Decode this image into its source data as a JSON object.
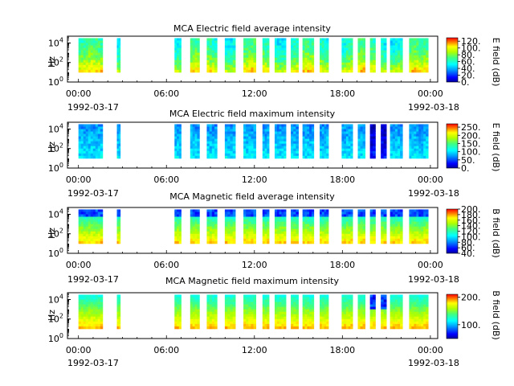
{
  "chart_data": [
    {
      "type": "heatmap",
      "title": "MCA  Electric field average intensity",
      "ylabel": "Hz",
      "y_ticks": [
        {
          "exp": "0"
        },
        {
          "exp": "2"
        },
        {
          "exp": "4"
        }
      ],
      "x_ticks": [
        "00:00",
        "06:00",
        "12:00",
        "18:00",
        "00:00"
      ],
      "x_date_start": "1992-03-17",
      "x_date_end": "1992-03-18",
      "colorbar": {
        "label": "E field (dB)",
        "range": [
          0,
          130
        ],
        "ticks": [
          "0.",
          "20.",
          "40.",
          "60.",
          "80.",
          "100.",
          "120."
        ]
      },
      "profile": "eavg"
    },
    {
      "type": "heatmap",
      "title": "MCA  Electric field maximum intensity",
      "ylabel": "Hz",
      "y_ticks": [
        {
          "exp": "0"
        },
        {
          "exp": "2"
        },
        {
          "exp": "4"
        }
      ],
      "x_ticks": [
        "00:00",
        "06:00",
        "12:00",
        "18:00",
        "00:00"
      ],
      "x_date_start": "1992-03-17",
      "x_date_end": "1992-03-18",
      "colorbar": {
        "label": "E field (dB)",
        "range": [
          0,
          270
        ],
        "ticks": [
          "0.",
          "50.",
          "100.",
          "150.",
          "200.",
          "250."
        ]
      },
      "profile": "emax"
    },
    {
      "type": "heatmap",
      "title": "MCA  Magnetic field average intensity",
      "ylabel": "Hz",
      "y_ticks": [
        {
          "exp": "0"
        },
        {
          "exp": "2"
        },
        {
          "exp": "4"
        }
      ],
      "x_ticks": [
        "00:00",
        "06:00",
        "12:00",
        "18:00",
        "00:00"
      ],
      "x_date_start": "1992-03-17",
      "x_date_end": "1992-03-18",
      "colorbar": {
        "label": "B field (dB)",
        "range": [
          40,
          200
        ],
        "ticks": [
          "40.",
          "60.",
          "80.",
          "100.",
          "120.",
          "140.",
          "160.",
          "180.",
          "200."
        ]
      },
      "profile": "bavg"
    },
    {
      "type": "heatmap",
      "title": "MCA  Magnetic field maximum intensity",
      "ylabel": "Hz",
      "y_ticks": [
        {
          "exp": "0"
        },
        {
          "exp": "2"
        },
        {
          "exp": "4"
        }
      ],
      "x_ticks": [
        "00:00",
        "06:00",
        "12:00",
        "18:00",
        "00:00"
      ],
      "x_date_start": "1992-03-17",
      "x_date_end": "1992-03-18",
      "colorbar": {
        "label": "B field (dB)",
        "range": [
          50,
          210
        ],
        "ticks": [
          "100.",
          "200."
        ]
      },
      "profile": "bmax"
    }
  ],
  "data_segments_hours": [
    [
      0.0,
      1.65
    ],
    [
      2.62,
      2.85
    ],
    [
      6.55,
      7.0
    ],
    [
      7.62,
      8.25
    ],
    [
      8.75,
      9.45
    ],
    [
      9.98,
      10.7
    ],
    [
      11.25,
      12.1
    ],
    [
      12.55,
      13.0
    ],
    [
      13.38,
      14.15
    ],
    [
      14.48,
      15.0
    ],
    [
      15.28,
      16.05
    ],
    [
      16.45,
      17.05
    ],
    [
      17.95,
      18.7
    ],
    [
      19.05,
      19.55
    ],
    [
      19.88,
      20.25
    ],
    [
      20.62,
      21.0
    ],
    [
      21.25,
      22.1
    ],
    [
      22.55,
      23.85
    ]
  ],
  "x_range_hours": [
    -0.75,
    24.5
  ],
  "y_range_log10": [
    0,
    4.7
  ],
  "frequency_range_log10": [
    1.0,
    4.5
  ]
}
